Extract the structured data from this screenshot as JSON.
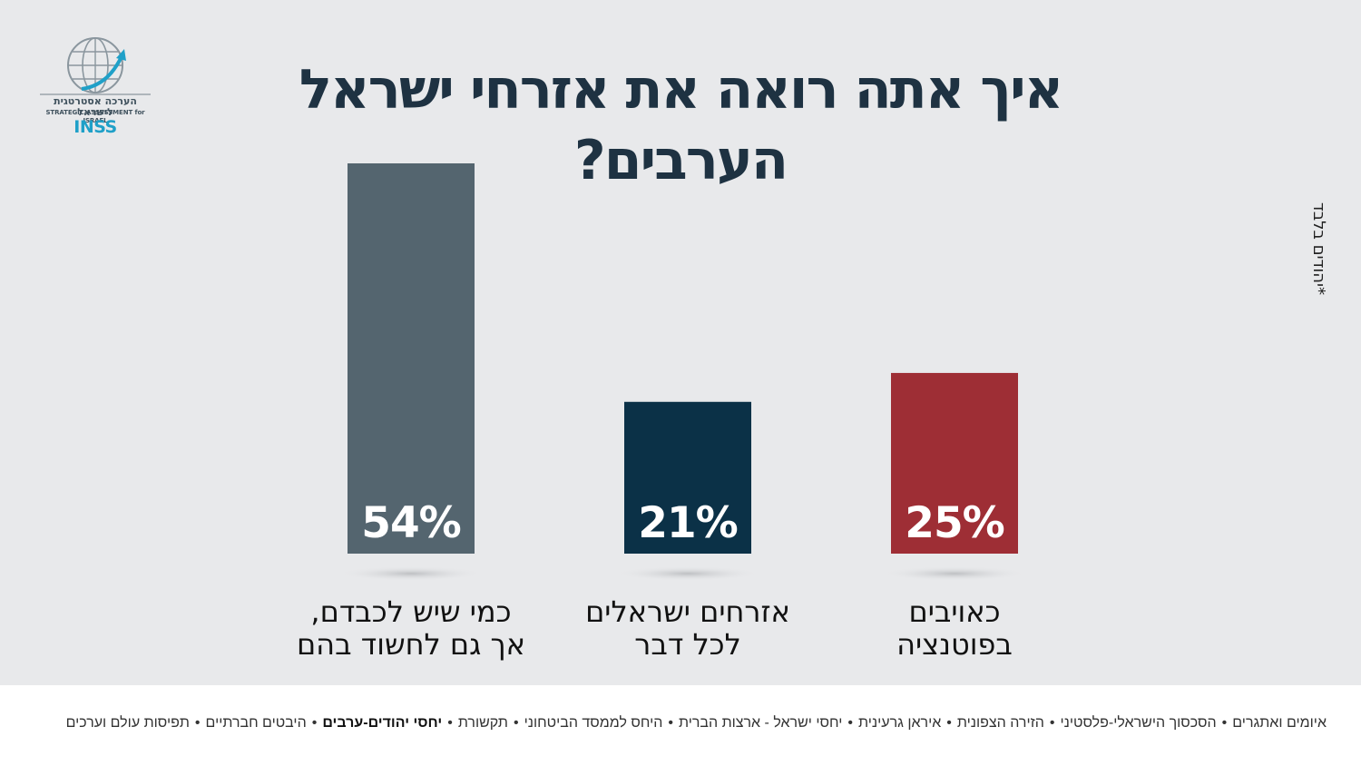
{
  "logo": {
    "hebrew": "הערכה אסטרטגית לישראל",
    "english": "STRATEGIC ASSESSMENT for ISRAEL",
    "brand": "INSS"
  },
  "side_note": "*יהודים בלבד",
  "colors": {
    "panel_bg": "#e8e9eb",
    "title": "#1e3242",
    "bar_slate": "#54656f",
    "bar_navy": "#0b3147",
    "bar_red": "#9e2e35",
    "logo_accent": "#1fa0c8"
  },
  "chart_data": {
    "type": "bar",
    "title": "איך אתה רואה את אזרחי ישראל הערבים?",
    "categories": [
      [
        "כמי שיש  לכבדם,",
        "אך גם לחשוד בהם"
      ],
      [
        "אזרחים ישראלים",
        "לכל דבר"
      ],
      [
        "כאויבים",
        "בפוטנציה"
      ]
    ],
    "values": [
      54,
      21,
      25
    ],
    "value_labels": [
      "54%",
      "21%",
      "25%"
    ],
    "bar_colors": [
      "#54656f",
      "#0b3147",
      "#9e2e35"
    ],
    "ylim": [
      0,
      54
    ],
    "grid": false,
    "legend": "none"
  },
  "footer": {
    "topics": [
      {
        "label": "איומים ואתגרים",
        "active": false
      },
      {
        "label": "הסכסוך הישראלי-פלסטיני",
        "active": false
      },
      {
        "label": "הזירה הצפונית",
        "active": false
      },
      {
        "label": "איראן גרעינית",
        "active": false
      },
      {
        "label": "יחסי ישראל - ארצות הברית",
        "active": false
      },
      {
        "label": "היחס לממסד הביטחוני",
        "active": false
      },
      {
        "label": "תקשורת",
        "active": false
      },
      {
        "label": "יחסי יהודים-ערבים",
        "active": true
      },
      {
        "label": "היבטים חברתיים",
        "active": false
      },
      {
        "label": "תפיסות עולם וערכים",
        "active": false
      }
    ],
    "separator": "•"
  }
}
